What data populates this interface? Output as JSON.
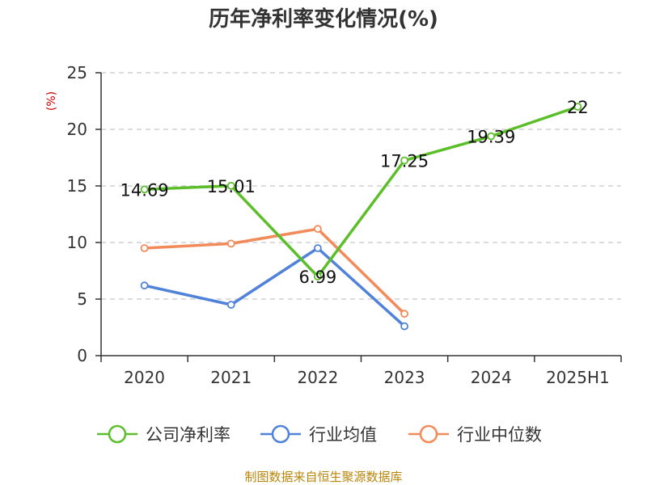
{
  "chart_data": {
    "type": "line",
    "title": "历年净利率变化情况(%)",
    "unit_label": "(%)",
    "categories": [
      "2020",
      "2021",
      "2022",
      "2023",
      "2024",
      "2025H1"
    ],
    "ylim": [
      0,
      25
    ],
    "yticks": [
      0,
      5,
      10,
      15,
      20,
      25
    ],
    "grid": true,
    "legend_position": "bottom",
    "series": [
      {
        "name": "公司净利率",
        "color": "#5cbf2a",
        "values": [
          14.69,
          15.01,
          6.99,
          17.25,
          19.39,
          22
        ],
        "labels": [
          "14.69",
          "15.01",
          "6.99",
          "17.25",
          "19.39",
          "22"
        ]
      },
      {
        "name": "行业均值",
        "color": "#4f82d8",
        "values": [
          6.2,
          4.5,
          9.5,
          2.6,
          null,
          null
        ]
      },
      {
        "name": "行业中位数",
        "color": "#f38a5a",
        "values": [
          9.5,
          9.9,
          11.2,
          3.7,
          null,
          null
        ]
      }
    ],
    "source": "制图数据来自恒生聚源数据库"
  }
}
